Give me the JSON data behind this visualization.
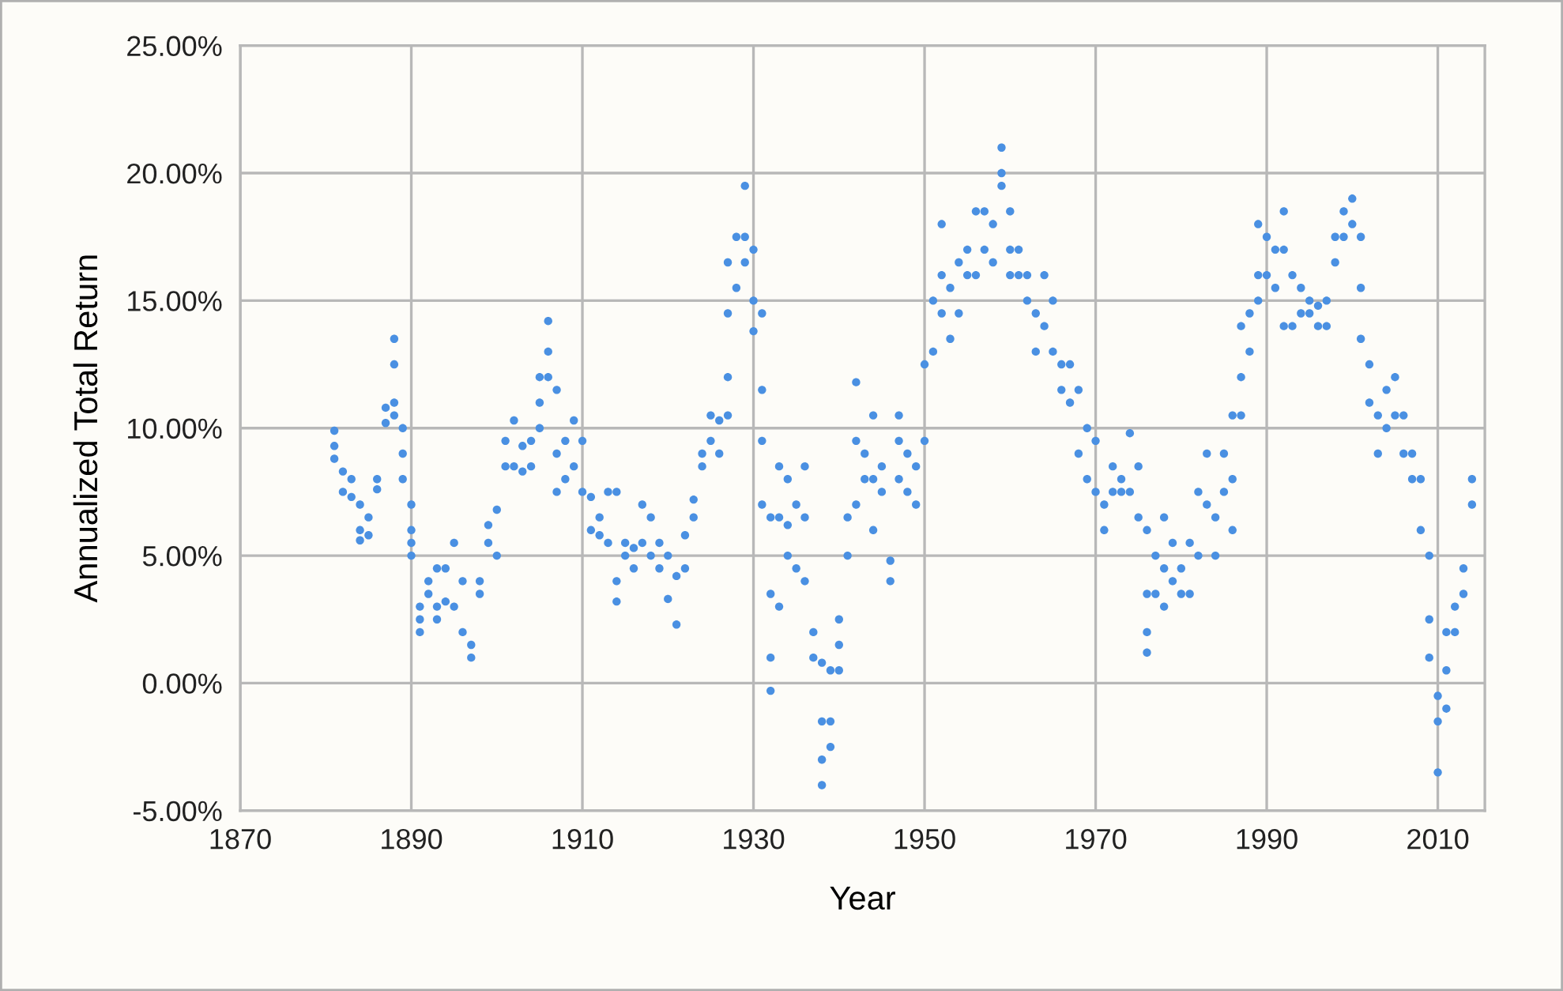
{
  "chart_data": {
    "type": "scatter",
    "xlabel": "Year",
    "ylabel": "Annualized Total Return",
    "x": [
      1881,
      1881,
      1881,
      1882,
      1882,
      1883,
      1883,
      1884,
      1884,
      1884,
      1885,
      1885,
      1886,
      1886,
      1887,
      1887,
      1888,
      1888,
      1888,
      1888,
      1889,
      1889,
      1889,
      1890,
      1890,
      1890,
      1890,
      1891,
      1891,
      1891,
      1892,
      1892,
      1893,
      1893,
      1893,
      1894,
      1894,
      1895,
      1895,
      1896,
      1896,
      1897,
      1897,
      1898,
      1898,
      1899,
      1899,
      1900,
      1900,
      1901,
      1901,
      1902,
      1902,
      1903,
      1903,
      1904,
      1904,
      1905,
      1905,
      1905,
      1906,
      1906,
      1906,
      1907,
      1907,
      1907,
      1908,
      1908,
      1909,
      1909,
      1910,
      1910,
      1911,
      1911,
      1912,
      1912,
      1913,
      1913,
      1914,
      1914,
      1914,
      1915,
      1915,
      1916,
      1916,
      1917,
      1917,
      1918,
      1918,
      1919,
      1919,
      1920,
      1920,
      1921,
      1921,
      1922,
      1922,
      1923,
      1923,
      1924,
      1924,
      1925,
      1925,
      1926,
      1926,
      1927,
      1927,
      1927,
      1927,
      1928,
      1928,
      1929,
      1929,
      1929,
      1930,
      1930,
      1930,
      1931,
      1931,
      1931,
      1931,
      1932,
      1932,
      1932,
      1932,
      1933,
      1933,
      1933,
      1934,
      1934,
      1934,
      1935,
      1935,
      1936,
      1936,
      1936,
      1937,
      1937,
      1938,
      1938,
      1938,
      1938,
      1939,
      1939,
      1939,
      1940,
      1940,
      1940,
      1941,
      1941,
      1942,
      1942,
      1942,
      1943,
      1943,
      1944,
      1944,
      1944,
      1945,
      1945,
      1946,
      1946,
      1947,
      1947,
      1947,
      1948,
      1948,
      1949,
      1949,
      1950,
      1950,
      1951,
      1951,
      1952,
      1952,
      1952,
      1953,
      1953,
      1954,
      1954,
      1955,
      1955,
      1956,
      1956,
      1957,
      1957,
      1958,
      1958,
      1959,
      1959,
      1959,
      1960,
      1960,
      1960,
      1961,
      1961,
      1962,
      1962,
      1963,
      1963,
      1964,
      1964,
      1965,
      1965,
      1966,
      1966,
      1967,
      1967,
      1968,
      1968,
      1969,
      1969,
      1970,
      1970,
      1971,
      1971,
      1972,
      1972,
      1973,
      1973,
      1974,
      1974,
      1975,
      1975,
      1976,
      1976,
      1976,
      1976,
      1977,
      1977,
      1978,
      1978,
      1978,
      1979,
      1979,
      1980,
      1980,
      1981,
      1981,
      1982,
      1982,
      1983,
      1983,
      1984,
      1984,
      1985,
      1985,
      1986,
      1986,
      1986,
      1987,
      1987,
      1987,
      1988,
      1988,
      1989,
      1989,
      1989,
      1990,
      1990,
      1991,
      1991,
      1992,
      1992,
      1992,
      1993,
      1993,
      1994,
      1994,
      1995,
      1995,
      1996,
      1996,
      1997,
      1997,
      1998,
      1998,
      1999,
      1999,
      2000,
      2000,
      2001,
      2001,
      2001,
      2002,
      2002,
      2003,
      2003,
      2004,
      2004,
      2005,
      2005,
      2006,
      2006,
      2007,
      2007,
      2008,
      2008,
      2009,
      2009,
      2009,
      2010,
      2010,
      2010,
      2011,
      2011,
      2011,
      2012,
      2012,
      2013,
      2013,
      2014,
      2014
    ],
    "values": [
      9.9,
      9.3,
      8.8,
      8.3,
      7.5,
      8.0,
      7.3,
      7.0,
      6.0,
      5.6,
      6.5,
      5.8,
      8.0,
      7.6,
      10.8,
      10.2,
      13.5,
      12.5,
      11.0,
      10.5,
      10.0,
      9.0,
      8.0,
      7.0,
      6.0,
      5.0,
      5.5,
      2.5,
      3.0,
      2.0,
      4.0,
      3.5,
      4.5,
      3.0,
      2.5,
      4.5,
      3.2,
      5.5,
      3.0,
      4.0,
      2.0,
      1.5,
      1.0,
      3.5,
      4.0,
      5.5,
      6.2,
      6.8,
      5.0,
      8.5,
      9.5,
      10.3,
      8.5,
      9.3,
      8.3,
      9.5,
      8.5,
      11.0,
      12.0,
      10.0,
      14.2,
      13.0,
      12.0,
      11.5,
      9.0,
      7.5,
      9.5,
      8.0,
      10.3,
      8.5,
      9.5,
      7.5,
      7.3,
      6.0,
      6.5,
      5.8,
      7.5,
      5.5,
      7.5,
      4.0,
      3.2,
      5.5,
      5.0,
      5.3,
      4.5,
      7.0,
      5.5,
      6.5,
      5.0,
      5.5,
      4.5,
      5.0,
      3.3,
      4.2,
      2.3,
      5.8,
      4.5,
      7.2,
      6.5,
      9.0,
      8.5,
      10.5,
      9.5,
      10.3,
      9.0,
      16.5,
      14.5,
      12.0,
      10.5,
      17.5,
      15.5,
      19.5,
      17.5,
      16.5,
      17.0,
      15.0,
      13.8,
      14.5,
      11.5,
      9.5,
      7.0,
      6.5,
      3.5,
      1.0,
      -0.3,
      8.5,
      6.5,
      3.0,
      8.0,
      5.0,
      6.2,
      7.0,
      4.5,
      8.5,
      6.5,
      4.0,
      2.0,
      1.0,
      0.8,
      -1.5,
      -3.0,
      -4.0,
      0.5,
      -1.5,
      -2.5,
      2.5,
      1.5,
      0.5,
      5.0,
      6.5,
      11.8,
      9.5,
      7.0,
      9.0,
      8.0,
      10.5,
      8.0,
      6.0,
      8.5,
      7.5,
      4.8,
      4.0,
      10.5,
      9.5,
      8.0,
      9.0,
      7.5,
      8.5,
      7.0,
      9.5,
      12.5,
      15.0,
      13.0,
      18.0,
      16.0,
      14.5,
      15.5,
      13.5,
      16.5,
      14.5,
      17.0,
      16.0,
      18.5,
      16.0,
      18.5,
      17.0,
      18.0,
      16.5,
      21.0,
      20.0,
      19.5,
      18.5,
      17.0,
      16.0,
      17.0,
      16.0,
      16.0,
      15.0,
      14.5,
      13.0,
      16.0,
      14.0,
      15.0,
      13.0,
      12.5,
      11.5,
      12.5,
      11.0,
      11.5,
      9.0,
      10.0,
      8.0,
      9.5,
      7.5,
      7.0,
      6.0,
      8.5,
      7.5,
      7.5,
      8.0,
      9.8,
      7.5,
      8.5,
      6.5,
      6.0,
      3.5,
      2.0,
      1.2,
      5.0,
      3.5,
      6.5,
      4.5,
      3.0,
      5.5,
      4.0,
      4.5,
      3.5,
      5.5,
      3.5,
      7.5,
      5.0,
      9.0,
      7.0,
      6.5,
      5.0,
      9.0,
      7.5,
      10.5,
      8.0,
      6.0,
      14.0,
      12.0,
      10.5,
      14.5,
      13.0,
      18.0,
      16.0,
      15.0,
      17.5,
      16.0,
      17.0,
      15.5,
      18.5,
      17.0,
      14.0,
      16.0,
      14.0,
      15.5,
      14.5,
      15.0,
      14.5,
      14.8,
      14.0,
      15.0,
      14.0,
      17.5,
      16.5,
      18.5,
      17.5,
      19.0,
      18.0,
      17.5,
      15.5,
      13.5,
      12.5,
      11.0,
      10.5,
      9.0,
      11.5,
      10.0,
      12.0,
      10.5,
      10.5,
      9.0,
      9.0,
      8.0,
      8.0,
      6.0,
      5.0,
      2.5,
      1.0,
      -0.5,
      -1.5,
      -3.5,
      0.5,
      -1.0,
      2.0,
      3.0,
      2.0,
      4.5,
      3.5,
      8.0,
      7.0
    ],
    "color": "#4a90e2",
    "marker": "circle",
    "xlim": [
      1870,
      2015.5
    ],
    "xticks": [
      1870,
      1890,
      1910,
      1930,
      1950,
      1970,
      1990,
      2010
    ],
    "ylim": [
      -5,
      25
    ],
    "yticks": [
      {
        "value": -5,
        "label": "-5.00%"
      },
      {
        "value": 0,
        "label": "0.00%"
      },
      {
        "value": 5,
        "label": "5.00%"
      },
      {
        "value": 10,
        "label": "10.00%"
      },
      {
        "value": 15,
        "label": "15.00%"
      },
      {
        "value": 20,
        "label": "20.00%"
      },
      {
        "value": 25,
        "label": "25.00%"
      }
    ],
    "grid": true
  }
}
